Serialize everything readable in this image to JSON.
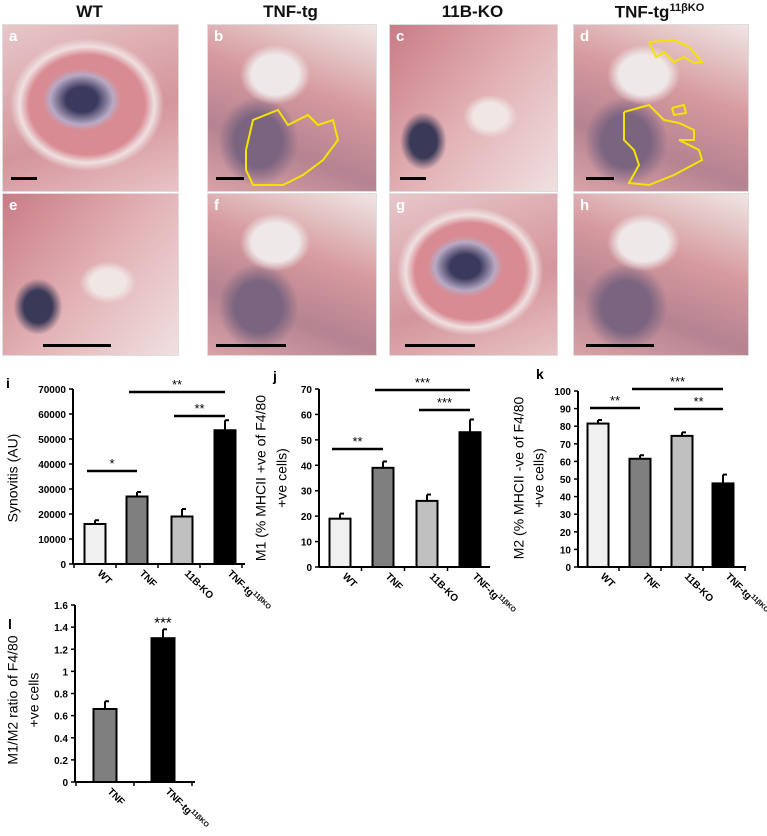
{
  "columns": [
    {
      "title": "WT",
      "sup": ""
    },
    {
      "title": "TNF-tg",
      "sup": ""
    },
    {
      "title": "11B-KO",
      "sup": ""
    },
    {
      "title": "TNF-tg",
      "sup": "11βKO"
    }
  ],
  "histology_panels": [
    "a",
    "b",
    "c",
    "d",
    "e",
    "f",
    "g",
    "h"
  ],
  "chart_panel_labels": [
    "i",
    "j",
    "k",
    "l"
  ],
  "colors": {
    "WT": "#f0f0f0",
    "TNF": "#7f7f7f",
    "11B-KO": "#c0c0c0",
    "TNF-tg11βKO": "#000000",
    "outline": "#f5e400"
  },
  "chart_data": [
    {
      "type": "bar",
      "panel": "i",
      "ylabel": [
        "Synovitis (AU)"
      ],
      "categories": [
        "WT",
        "TNF",
        "11B-KO",
        "TNF-tg"
      ],
      "category_superscripts": [
        "",
        "",
        "",
        "11βKO"
      ],
      "values": [
        16000,
        27000,
        19000,
        53500
      ],
      "errors": [
        1500,
        1800,
        3000,
        4000
      ],
      "ylim": [
        0,
        70000
      ],
      "yticks": [
        0,
        10000,
        20000,
        30000,
        40000,
        50000,
        60000,
        70000
      ],
      "significance": [
        {
          "from": 0,
          "to": 1,
          "label": "*"
        },
        {
          "from": 1,
          "to": 3,
          "label": "**"
        },
        {
          "from": 2,
          "to": 3,
          "label": "**"
        }
      ]
    },
    {
      "type": "bar",
      "panel": "j",
      "ylabel": [
        "M1 (% MHCII +ve of F4/80",
        "+ve cells)"
      ],
      "categories": [
        "WT",
        "TNF",
        "11B-KO",
        "TNF-tg"
      ],
      "category_superscripts": [
        "",
        "",
        "",
        "11βKO"
      ],
      "values": [
        19,
        39,
        26,
        53
      ],
      "errors": [
        2,
        2.5,
        2.5,
        5
      ],
      "ylim": [
        0,
        70
      ],
      "yticks": [
        0,
        10,
        20,
        30,
        40,
        50,
        60,
        70
      ],
      "significance": [
        {
          "from": 0,
          "to": 1,
          "label": "**"
        },
        {
          "from": 1,
          "to": 3,
          "label": "***"
        },
        {
          "from": 2,
          "to": 3,
          "label": "***"
        }
      ]
    },
    {
      "type": "bar",
      "panel": "k",
      "ylabel": [
        "M2 (% MHCII -ve of F4/80",
        "+ve cells)"
      ],
      "categories": [
        "WT",
        "TNF",
        "11B-KO",
        "TNF-tg"
      ],
      "category_superscripts": [
        "",
        "",
        "",
        "11βKO"
      ],
      "values": [
        81.5,
        61.5,
        74.5,
        47.5
      ],
      "errors": [
        2,
        2,
        2,
        5
      ],
      "ylim": [
        0,
        100
      ],
      "yticks": [
        0,
        10,
        20,
        30,
        40,
        50,
        60,
        70,
        80,
        90,
        100
      ],
      "significance": [
        {
          "from": 0,
          "to": 1,
          "label": "**"
        },
        {
          "from": 1,
          "to": 3,
          "label": "***"
        },
        {
          "from": 2,
          "to": 3,
          "label": "**"
        }
      ]
    },
    {
      "type": "bar",
      "panel": "l",
      "ylabel": [
        "M1/M2 ratio of F4/80",
        "+ve cells"
      ],
      "categories": [
        "TNF",
        "TNF-tg"
      ],
      "category_superscripts": [
        "",
        "11βKO"
      ],
      "values": [
        0.66,
        1.3
      ],
      "errors": [
        0.07,
        0.08
      ],
      "ylim": [
        0,
        1.6
      ],
      "yticks": [
        0,
        0.2,
        0.4,
        0.6,
        0.8,
        1,
        1.2,
        1.4,
        1.6
      ],
      "significance": [
        {
          "bar": 1,
          "label": "***"
        }
      ]
    }
  ]
}
